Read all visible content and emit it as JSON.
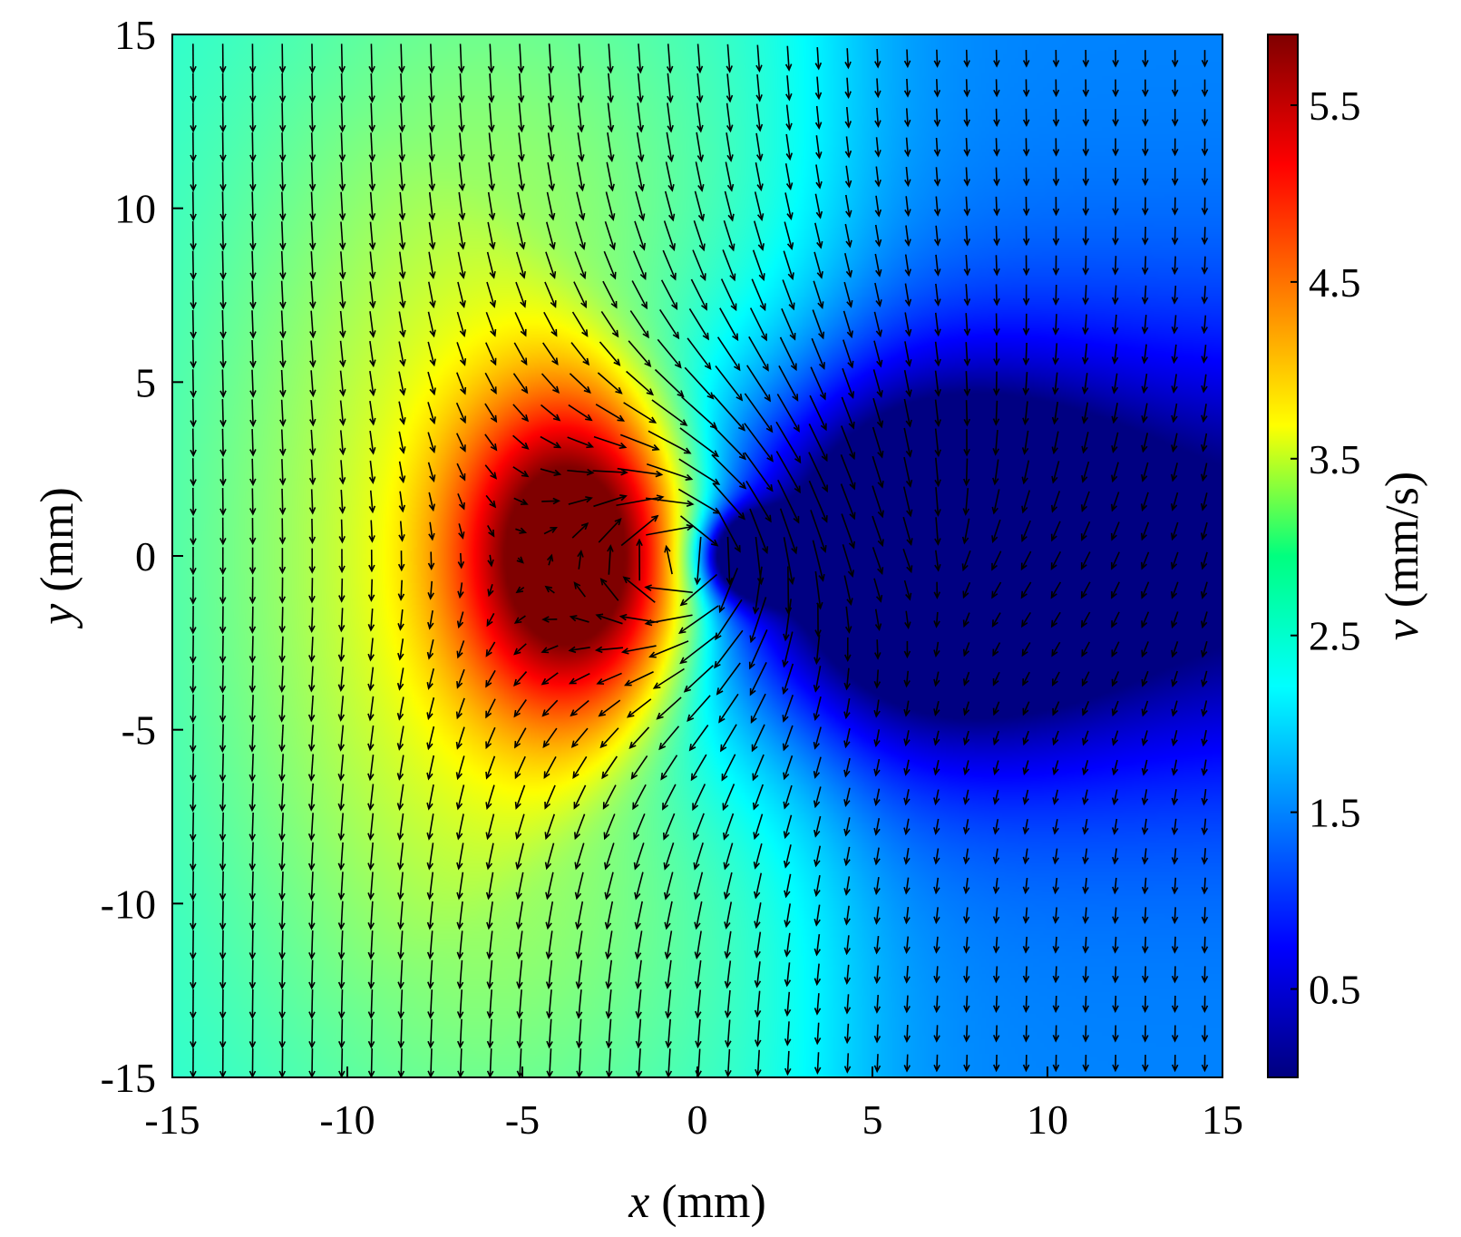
{
  "chart_data": {
    "type": "heatmap",
    "title": "",
    "xlabel": {
      "var": "x",
      "unit": " (mm)"
    },
    "ylabel": {
      "var": "y",
      "unit": " (mm)"
    },
    "xlim": [
      -15,
      15
    ],
    "ylim": [
      -15,
      15
    ],
    "xticks": [
      -15,
      -10,
      -5,
      0,
      5,
      10,
      15
    ],
    "yticks": [
      -15,
      -10,
      -5,
      0,
      5,
      10,
      15
    ],
    "xtick_labels": [
      "-15",
      "-10",
      "-5",
      "0",
      "5",
      "10",
      "15"
    ],
    "ytick_labels": [
      "-15",
      "-10",
      "-5",
      "0",
      "5",
      "10",
      "15"
    ],
    "colorbar": {
      "label": {
        "var": "v",
        "unit": " (mm/s)"
      },
      "range": [
        0,
        5.9
      ],
      "ticks": [
        0.5,
        1.5,
        2.5,
        3.5,
        4.5,
        5.5
      ],
      "tick_labels": [
        "0.5",
        "1.5",
        "2.5",
        "3.5",
        "4.5",
        "5.5"
      ],
      "colormap": "jet"
    },
    "field": {
      "description_values": "speed magnitude field v(x,y) in mm/s",
      "background_speed": 2.4,
      "peak": {
        "x": -3.5,
        "y": 0,
        "value": 5.9
      },
      "wake_minimum": {
        "x": 7,
        "y": 0,
        "value": 0.1
      },
      "inner_minimum": {
        "x": 1.5,
        "y": 0,
        "value": 0.6
      }
    },
    "vectors": {
      "grid_spacing": 0.85,
      "arrow_color": "#000000",
      "notes": "downward flow on left, swirling around source near origin, converging flow on right"
    },
    "grid": false
  }
}
